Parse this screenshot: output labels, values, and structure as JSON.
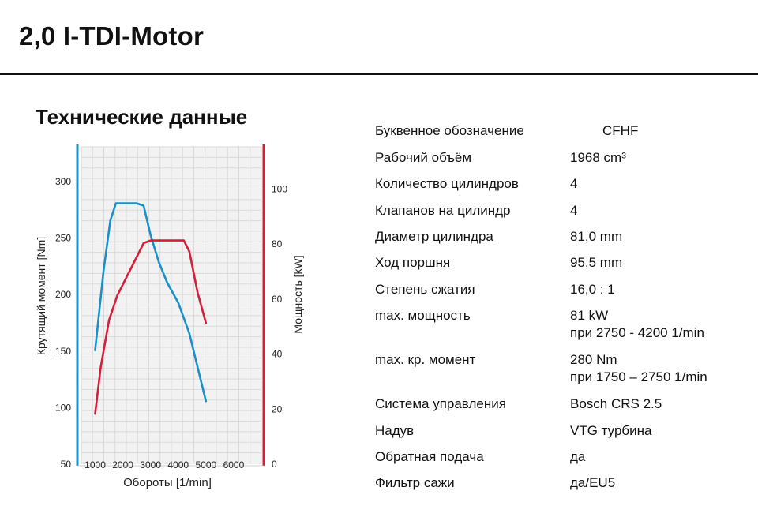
{
  "page_title": "2,0 I-TDI-Motor",
  "section_title": "Технические данные",
  "specs": [
    {
      "label": "Буквенное обозначение",
      "value": "CFHF",
      "sub": ""
    },
    {
      "label": "Рабочий объём",
      "value": "1968 cm³",
      "sub": ""
    },
    {
      "label": "Количество цилиндров",
      "value": "4",
      "sub": ""
    },
    {
      "label": "Клапанов на цилиндр",
      "value": "4",
      "sub": ""
    },
    {
      "label": "Диаметр цилиндра",
      "value": "81,0 mm",
      "sub": ""
    },
    {
      "label": "Ход поршня",
      "value": "95,5 mm",
      "sub": ""
    },
    {
      "label": "Степень сжатия",
      "value": "16,0 : 1",
      "sub": ""
    },
    {
      "label": "max. мощность",
      "value": "81 kW",
      "sub": "при 2750 - 4200 1/min"
    },
    {
      "label": "max. кр. момент",
      "value": "280 Nm",
      "sub": "при 1750 – 2750 1/min"
    },
    {
      "label": "Система управления",
      "value": "Bosch CRS 2.5",
      "sub": ""
    },
    {
      "label": "Надув",
      "value": "VTG турбина",
      "sub": ""
    },
    {
      "label": "Обратная подача",
      "value": "да",
      "sub": ""
    },
    {
      "label": "Фильтр сажи",
      "value": "да/EU5",
      "sub": ""
    }
  ],
  "chart_data": {
    "type": "line",
    "xlabel": "Обороты [1/min]",
    "ylabel_left": "Крутящий момент  [Nm]",
    "ylabel_right": "Мощность [kW]",
    "xlim": [
      500,
      7000
    ],
    "x_ticks": [
      1000,
      2000,
      3000,
      4000,
      5000,
      6000
    ],
    "ylim_left": [
      50,
      330
    ],
    "y_ticks_left": [
      50,
      100,
      150,
      200,
      250,
      300
    ],
    "ylim_right": [
      0,
      115
    ],
    "y_ticks_right": [
      0,
      20,
      40,
      60,
      80,
      100
    ],
    "grid": true,
    "colors": {
      "torque": "#1a8fc9",
      "power": "#d41f3a",
      "grid": "#d9d9d9",
      "plot_bg": "#f2f2f2"
    },
    "series": [
      {
        "key": "torque",
        "axis": "left",
        "x": [
          1000,
          1300,
          1550,
          1750,
          2000,
          2500,
          2750,
          3000,
          3300,
          3600,
          4000,
          4400,
          4700,
          5000
        ],
        "y": [
          150,
          220,
          265,
          280,
          280,
          280,
          278,
          252,
          228,
          210,
          192,
          165,
          135,
          105
        ]
      },
      {
        "key": "power",
        "axis": "right",
        "x": [
          1000,
          1200,
          1500,
          1800,
          2100,
          2500,
          2750,
          3000,
          3500,
          4200,
          4400,
          4700,
          5000
        ],
        "y": [
          18,
          35,
          52,
          61,
          67,
          75,
          80,
          81,
          81,
          81,
          77,
          62,
          51
        ]
      }
    ]
  }
}
